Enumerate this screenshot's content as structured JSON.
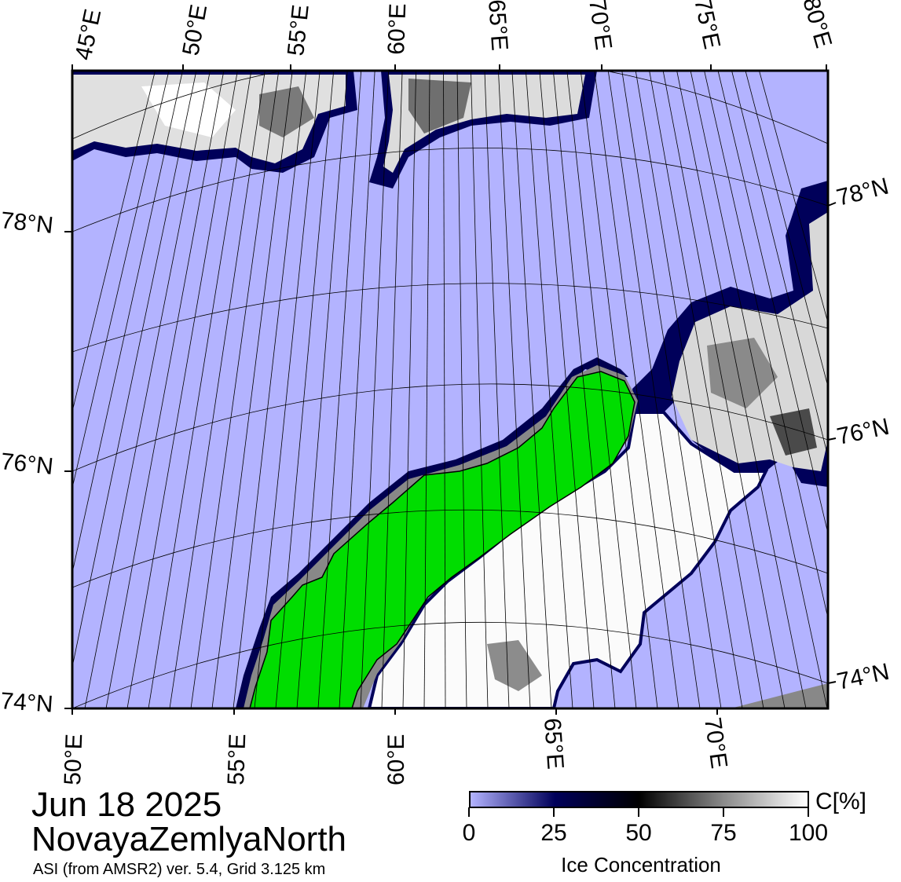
{
  "title": {
    "date": "Jun 18 2025",
    "region": "NovayaZemlyaNorth",
    "subtitle": "ASI (from AMSR2) ver. 5.4,  Grid 3.125 km"
  },
  "map": {
    "top_lon_labels": [
      "45°E",
      "50°E",
      "55°E",
      "60°E",
      "65°E",
      "70°E",
      "75°E",
      "80°E"
    ],
    "bottom_lon_labels": [
      "50°E",
      "55°E",
      "60°E",
      "65°E",
      "70°E"
    ],
    "left_lat_labels": [
      "78°N",
      "76°N",
      "74°N"
    ],
    "right_lat_labels": [
      "78°N",
      "76°N",
      "74°N"
    ]
  },
  "colorbar": {
    "ticks": [
      "0",
      "25",
      "50",
      "75",
      "100"
    ],
    "unit": "C[%]",
    "label": "Ice Concentration"
  },
  "colors": {
    "open_water": "#b3b3ff",
    "land": "#00dd00",
    "coast_mask": "#888888",
    "ice_high": "#ffffff",
    "ice_low": "#00003c"
  }
}
